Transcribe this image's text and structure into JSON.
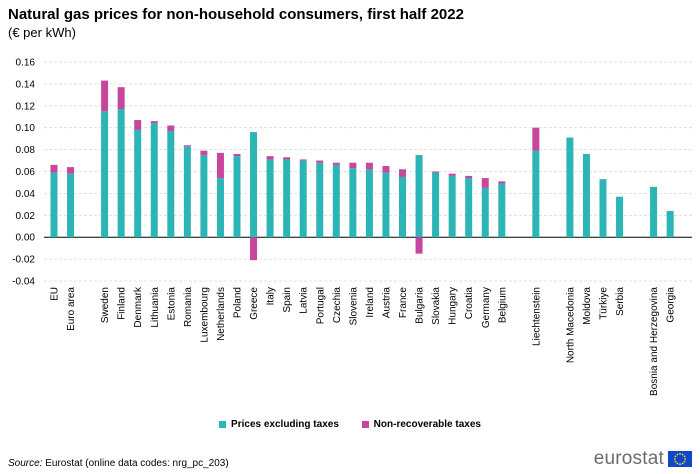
{
  "chart_data": {
    "type": "bar",
    "stacked": true,
    "title": "Natural gas prices for non-household consumers, first half 2022",
    "subtitle": "(€ per kWh)",
    "ylim": [
      -0.04,
      0.16
    ],
    "yticks": [
      "0.16",
      "0.14",
      "0.12",
      "0.10",
      "0.08",
      "0.06",
      "0.04",
      "0.02",
      "0.00",
      "-0.02",
      "-0.04"
    ],
    "ytick_values": [
      0.16,
      0.14,
      0.12,
      0.1,
      0.08,
      0.06,
      0.04,
      0.02,
      0.0,
      -0.02,
      -0.04
    ],
    "grid": true,
    "legend_position": "bottom",
    "categories": [
      "EU",
      "Euro area",
      "Sweden",
      "Finland",
      "Denmark",
      "Lithuania",
      "Estonia",
      "Romania",
      "Luxembourg",
      "Netherlands",
      "Poland",
      "Greece",
      "Italy",
      "Spain",
      "Latvia",
      "Portugal",
      "Czechia",
      "Slovenia",
      "Ireland",
      "Austria",
      "France",
      "Bulgaria",
      "Slovakia",
      "Hungary",
      "Croatia",
      "Germany",
      "Belgium",
      "Liechtenstein",
      "North Macedonia",
      "Moldova",
      "Türkiye",
      "Serbia",
      "Bosnia and Herzegovina",
      "Georgia"
    ],
    "groups": [
      2,
      25,
      1,
      4,
      2
    ],
    "series": [
      {
        "name": "Prices excluding taxes",
        "color": "#2cb5b5",
        "values": [
          0.059,
          0.058,
          0.115,
          0.117,
          0.098,
          0.104,
          0.097,
          0.083,
          0.075,
          0.054,
          0.074,
          0.096,
          0.071,
          0.071,
          0.07,
          0.068,
          0.066,
          0.063,
          0.062,
          0.059,
          0.055,
          0.075,
          0.059,
          0.056,
          0.054,
          0.045,
          0.049,
          0.079,
          0.091,
          0.076,
          0.053,
          0.037,
          0.046,
          0.024
        ]
      },
      {
        "name": "Non-recoverable taxes",
        "color": "#c7479c",
        "values": [
          0.007,
          0.006,
          0.028,
          0.02,
          0.009,
          0.002,
          0.005,
          0.001,
          0.004,
          0.023,
          0.002,
          -0.021,
          0.003,
          0.002,
          0.001,
          0.002,
          0.002,
          0.005,
          0.006,
          0.006,
          0.007,
          -0.015,
          0.001,
          0.002,
          0.002,
          0.009,
          0.002,
          0.021,
          0.0,
          0.0,
          0.0,
          0.0,
          0.0,
          0.0
        ]
      }
    ],
    "source_lead": "Source:",
    "source_text": " Eurostat (online data codes: nrg_pc_203)"
  },
  "logo": {
    "text": "eurostat",
    "flag_icon": "eu-flag-icon",
    "flag_color": "#0e47cb",
    "star_color": "#ffdd00"
  }
}
